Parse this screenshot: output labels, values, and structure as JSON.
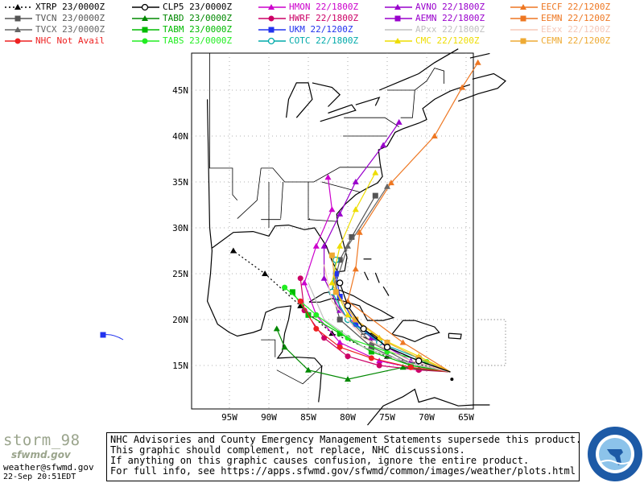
{
  "legend": [
    {
      "label": "XTRP 23/0000Z",
      "color": "#000000",
      "marker": "triangle",
      "style": "dotted"
    },
    {
      "label": "CLP5 23/0000Z",
      "color": "#000000",
      "marker": "circle-open",
      "style": "solid"
    },
    {
      "label": "HMON 22/1800Z",
      "color": "#cc00cc",
      "marker": "triangle",
      "style": "solid"
    },
    {
      "label": "AVNO 22/1800Z",
      "color": "#9900cc",
      "marker": "triangle",
      "style": "solid"
    },
    {
      "label": "EECF 22/1200Z",
      "color": "#ee7722",
      "marker": "triangle",
      "style": "solid"
    },
    {
      "label": "TVCN 23/0000Z",
      "color": "#555555",
      "marker": "square",
      "style": "solid"
    },
    {
      "label": "TABD 23/0000Z",
      "color": "#008800",
      "marker": "triangle",
      "style": "solid"
    },
    {
      "label": "HWRF 22/1800Z",
      "color": "#cc0066",
      "marker": "circle",
      "style": "solid"
    },
    {
      "label": "AEMN 22/1800Z",
      "color": "#9900cc",
      "marker": "square",
      "style": "solid"
    },
    {
      "label": "EEMN 22/1200Z",
      "color": "#ee7722",
      "marker": "square",
      "style": "solid"
    },
    {
      "label": "TVCX 23/0000Z",
      "color": "#666666",
      "marker": "triangle",
      "style": "solid"
    },
    {
      "label": "TABM 23/0000Z",
      "color": "#00bb00",
      "marker": "square",
      "style": "solid"
    },
    {
      "label": "UKM 22/1200Z",
      "color": "#2233ee",
      "marker": "square",
      "style": "solid"
    },
    {
      "label": "APxx 22/1800Z",
      "color": "#c0c0c0",
      "marker": "none",
      "style": "solid"
    },
    {
      "label": "EExx 22/1200Z",
      "color": "#f5c8b8",
      "marker": "none",
      "style": "solid"
    },
    {
      "label": "NHC Not Avail",
      "color": "#ee2222",
      "marker": "circle",
      "style": "solid"
    },
    {
      "label": "TABS 23/0000Z",
      "color": "#22ee22",
      "marker": "circle",
      "style": "solid"
    },
    {
      "label": "COTC 22/1800Z",
      "color": "#00aaaa",
      "marker": "circle-open",
      "style": "solid"
    },
    {
      "label": "CMC 22/1200Z",
      "color": "#eedd00",
      "marker": "triangle",
      "style": "solid"
    },
    {
      "label": "CEMN 22/1200Z",
      "color": "#eeaa33",
      "marker": "square",
      "style": "solid"
    }
  ],
  "map": {
    "lon_labels": [
      "95W",
      "90W",
      "85W",
      "80W",
      "75W",
      "70W",
      "65W"
    ],
    "lat_labels": [
      "15N",
      "20N",
      "25N",
      "30N",
      "35N",
      "40N",
      "45N"
    ]
  },
  "footer": {
    "logo_text": "storm_98",
    "logo_sub": "sfwmd.gov",
    "email": "weather@sfwmd.gov",
    "datetime": "22-Sep 20:51EDT",
    "disclaimer": [
      "NHC Advisories and County Emergency Management Statements supersede this product.",
      "This graphic should complement, not replace, NHC discussions.",
      "If anything on this graphic causes confusion, ignore the entire product.",
      "For full info, see  https://apps.sfwmd.gov/sfwmd/common/images/weather/plots.html"
    ]
  }
}
